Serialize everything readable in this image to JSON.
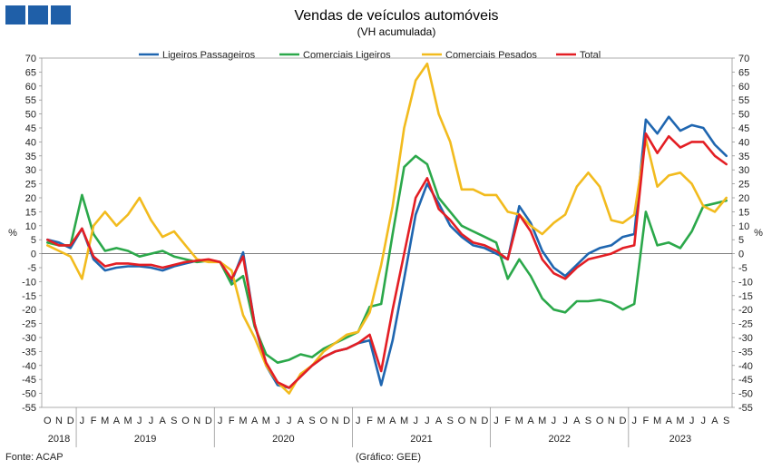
{
  "header": {
    "logo_icon": "gee-logo-icon"
  },
  "chart_data": {
    "type": "line",
    "title": "Vendas de veículos automóveis",
    "subtitle": "(VH acumulada)",
    "ylabel": "%",
    "ylabel_right": "%",
    "ylim": [
      -55,
      70
    ],
    "ytick_step": 5,
    "grid": false,
    "legend_position": "top",
    "x": [
      "O",
      "N",
      "D",
      "J",
      "F",
      "M",
      "A",
      "M",
      "J",
      "J",
      "A",
      "S",
      "O",
      "N",
      "D",
      "J",
      "F",
      "M",
      "A",
      "M",
      "J",
      "J",
      "A",
      "S",
      "O",
      "N",
      "D",
      "J",
      "F",
      "M",
      "A",
      "M",
      "J",
      "J",
      "A",
      "S",
      "O",
      "N",
      "D",
      "J",
      "F",
      "M",
      "A",
      "M",
      "J",
      "J",
      "A",
      "S",
      "O",
      "N",
      "D",
      "J",
      "F",
      "M",
      "A",
      "M",
      "J",
      "J",
      "A",
      "S"
    ],
    "years": [
      {
        "label": "2018",
        "start": 0,
        "end": 2
      },
      {
        "label": "2019",
        "start": 3,
        "end": 14
      },
      {
        "label": "2020",
        "start": 15,
        "end": 26
      },
      {
        "label": "2021",
        "start": 27,
        "end": 38
      },
      {
        "label": "2022",
        "start": 39,
        "end": 50
      },
      {
        "label": "2023",
        "start": 51,
        "end": 59
      }
    ],
    "series": [
      {
        "name": "Ligeiros Passageiros",
        "color": "#1f66b0",
        "values": [
          5,
          4,
          2,
          9,
          -2,
          -6,
          -5,
          -4.5,
          -4.5,
          -5,
          -6,
          -4.5,
          -3.5,
          -2.5,
          -2.5,
          -3,
          -10,
          0.5,
          -25,
          -40,
          -47,
          -48,
          -44,
          -40,
          -37,
          -35,
          -34,
          -32,
          -31,
          -47,
          -31,
          -9,
          14,
          25,
          18,
          10,
          6,
          3,
          2,
          0,
          -2,
          17,
          11,
          1,
          -5,
          -8,
          -4,
          0,
          2,
          3,
          6,
          7,
          48,
          43,
          49,
          44,
          46,
          45,
          39,
          35
        ]
      },
      {
        "name": "Comerciais Ligeiros",
        "color": "#2ba84a",
        "values": [
          4,
          3,
          3,
          21,
          7,
          1,
          2,
          1,
          -1,
          0,
          1,
          -1,
          -2,
          -3,
          -2.5,
          -3,
          -11,
          -8,
          -26,
          -36,
          -39,
          -38,
          -36,
          -37,
          -34,
          -32,
          -30,
          -28,
          -19,
          -18,
          7,
          31,
          35,
          32,
          20,
          15,
          10,
          8,
          6,
          4,
          -9,
          -2,
          -8,
          -16,
          -20,
          -21,
          -17,
          -17,
          -16.5,
          -17.5,
          -20,
          -18,
          15,
          3,
          4,
          2,
          8,
          17,
          18,
          19
        ]
      },
      {
        "name": "Comerciais Pesados",
        "color": "#f2bb1e",
        "values": [
          3,
          1,
          -1,
          -9,
          10,
          15,
          10,
          14,
          20,
          12,
          6,
          8,
          3,
          -2,
          -3,
          -3,
          -6,
          -22,
          -30,
          -40,
          -46,
          -50,
          -43,
          -40,
          -35,
          -32,
          -29,
          -28,
          -21,
          -4,
          17,
          45,
          62,
          68,
          50,
          40,
          23,
          23,
          21,
          21,
          15,
          14,
          10,
          7,
          11,
          14,
          24,
          29,
          24,
          12,
          11,
          14,
          41,
          24,
          28,
          29,
          25,
          17,
          15,
          20
        ]
      },
      {
        "name": "Total",
        "color": "#e31e24",
        "values": [
          5,
          3,
          3,
          9,
          -1,
          -4.5,
          -3.5,
          -3.5,
          -4,
          -4,
          -5,
          -4,
          -3,
          -2.5,
          -2,
          -3,
          -9,
          -1,
          -25,
          -39,
          -46,
          -48,
          -44,
          -40,
          -37,
          -35,
          -34,
          -32,
          -29,
          -42,
          -20,
          0,
          20,
          27,
          16,
          12,
          7,
          4,
          3,
          1,
          -2,
          14,
          8,
          -2,
          -7,
          -9,
          -5,
          -2,
          -1,
          0,
          2,
          3,
          43,
          36,
          42,
          38,
          40,
          40,
          35,
          32
        ]
      }
    ]
  },
  "footer": {
    "source": "Fonte: ACAP",
    "credit": "(Gráfico: GEE)"
  }
}
